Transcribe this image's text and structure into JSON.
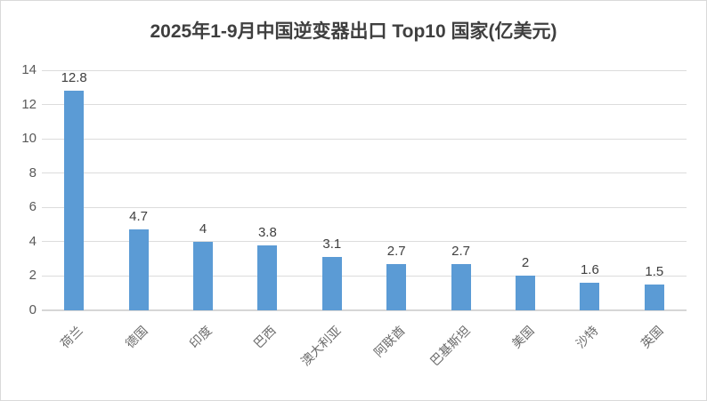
{
  "chart_data": {
    "type": "bar",
    "title": "2025年1-9月中国逆变器出口 Top10 国家(亿美元)",
    "categories": [
      "荷兰",
      "德国",
      "印度",
      "巴西",
      "澳大利亚",
      "阿联酋",
      "巴基斯坦",
      "美国",
      "沙特",
      "英国"
    ],
    "values": [
      12.8,
      4.7,
      4,
      3.8,
      3.1,
      2.7,
      2.7,
      2,
      1.6,
      1.5
    ],
    "value_labels": [
      "12.8",
      "4.7",
      "4",
      "3.8",
      "3.1",
      "2.7",
      "2.7",
      "2",
      "1.6",
      "1.5"
    ],
    "xlabel": "",
    "ylabel": "",
    "ylim": [
      0,
      14
    ],
    "yticks": [
      0,
      2,
      4,
      6,
      8,
      10,
      12,
      14
    ],
    "grid": true,
    "legend_position": "none",
    "colors": {
      "bar": "#5b9bd5",
      "gridline": "#dcdcdc",
      "axis_line": "#d6d6d6",
      "title_text": "#3f3f3f",
      "tick_text": "#595959",
      "category_text": "#6b6b6b",
      "value_label_text": "#3f3f3f",
      "chart_border": "#d9d9d9",
      "background": "#ffffff"
    }
  }
}
